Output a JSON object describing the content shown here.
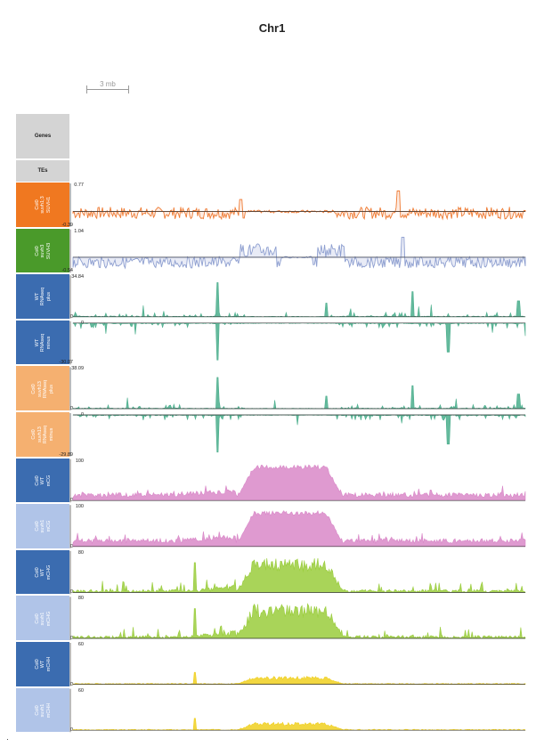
{
  "title": "Chr1",
  "scale_bar": "3 mb",
  "annotation_tracks": [
    {
      "label": "Genes"
    },
    {
      "label": "TEs"
    }
  ],
  "tracks": [
    {
      "lines": [
        "Col0",
        "suvh1;3",
        "SUVH1"
      ],
      "ymax": "0.77",
      "ymin": "-0.39",
      "color": "#ef7a32",
      "label_bg": "#f07820",
      "shape": "ratio_orange"
    },
    {
      "lines": [
        "Col0",
        "suvh3",
        "SUVH3"
      ],
      "ymax": "1.04",
      "ymin": "-0.54",
      "color": "#8e9fd0",
      "label_bg": "#4a9a2a",
      "shape": "ratio_blue"
    },
    {
      "lines": [
        "WT",
        "RNAseq",
        "plus"
      ],
      "ymax": "34.84",
      "ymin": "0",
      "color": "#4aae8c",
      "label_bg": "#3b6cb0",
      "shape": "rna_plus"
    },
    {
      "lines": [
        "WT",
        "RNAseq",
        "minus"
      ],
      "ymax": "0",
      "ymin": "-30.07",
      "color": "#4aae8c",
      "label_bg": "#3b6cb0",
      "shape": "rna_minus"
    },
    {
      "lines": [
        "Col0",
        "suvh13",
        "RNAseq",
        "plus"
      ],
      "ymax": "38.09",
      "ymin": "0",
      "color": "#4aae8c",
      "label_bg": "#f5b070",
      "shape": "rna_plus2"
    },
    {
      "lines": [
        "Col0",
        "suvh13",
        "RNAseq",
        "minus"
      ],
      "ymax": "0",
      "ymin": "-29.89",
      "color": "#4aae8c",
      "label_bg": "#f5b070",
      "shape": "rna_minus2"
    },
    {
      "lines": [
        "Col0",
        "WT",
        "mCG"
      ],
      "ymax": "100",
      "ymin": "0",
      "color": "#d988c8",
      "label_bg": "#3b6cb0",
      "shape": "mCG"
    },
    {
      "lines": [
        "Col0",
        "suvh1",
        "mCG"
      ],
      "ymax": "100",
      "ymin": "0",
      "color": "#d988c8",
      "label_bg": "#b0c4e8",
      "shape": "mCG"
    },
    {
      "lines": [
        "Col0",
        "WT",
        "mCHG"
      ],
      "ymax": "80",
      "ymin": "0",
      "color": "#9acd3c",
      "label_bg": "#3b6cb0",
      "shape": "mCHG"
    },
    {
      "lines": [
        "Col0",
        "suvh1",
        "mCHG"
      ],
      "ymax": "80",
      "ymin": "0",
      "color": "#9acd3c",
      "label_bg": "#b0c4e8",
      "shape": "mCHG"
    },
    {
      "lines": [
        "Col0",
        "WT",
        "mCHH"
      ],
      "ymax": "60",
      "ymin": "0",
      "color": "#f0d020",
      "label_bg": "#3b6cb0",
      "shape": "mCHH"
    },
    {
      "lines": [
        "Col0",
        "suvh1",
        "mCHH"
      ],
      "ymax": "60",
      "ymin": "0",
      "color": "#f0d020",
      "label_bg": "#b0c4e8",
      "shape": "mCHH"
    }
  ]
}
